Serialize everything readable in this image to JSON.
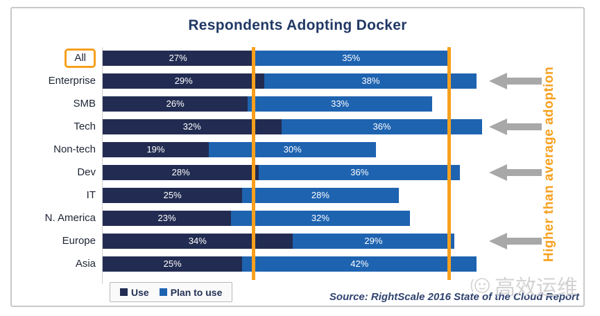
{
  "title": "Respondents Adopting Docker",
  "annotation": "Higher than average adoption",
  "source": "Source: RightScale 2016 State of the Cloud Report",
  "watermark": "高效运维",
  "legend": {
    "use": "Use",
    "plan": "Plan to use"
  },
  "colors": {
    "use": "#222c52",
    "plan": "#1e63b0",
    "orange": "#f7a01e",
    "arrow": "#a8a8a8",
    "title": "#203864",
    "source": "#2f4370",
    "watermark": "#d2d2d2"
  },
  "chart_data": {
    "type": "bar",
    "orientation": "horizontal",
    "stacked": true,
    "title": "Respondents Adopting Docker",
    "categories": [
      "All",
      "Enterprise",
      "SMB",
      "Tech",
      "Non-tech",
      "Dev",
      "IT",
      "N. America",
      "Europe",
      "Asia"
    ],
    "series": [
      {
        "name": "Use",
        "values": [
          27,
          29,
          26,
          32,
          19,
          28,
          25,
          23,
          34,
          25
        ]
      },
      {
        "name": "Plan to use",
        "values": [
          35,
          38,
          33,
          36,
          30,
          36,
          28,
          32,
          29,
          42
        ]
      }
    ],
    "value_suffix": "%",
    "xlim": [
      0,
      86
    ],
    "grid": false,
    "legend_position": "bottom-left",
    "reference_lines": [
      27,
      62
    ],
    "arrow_categories": [
      "Enterprise",
      "Tech",
      "Dev",
      "Europe"
    ],
    "boxed_category": "All",
    "annotation": "Higher than average adoption"
  }
}
